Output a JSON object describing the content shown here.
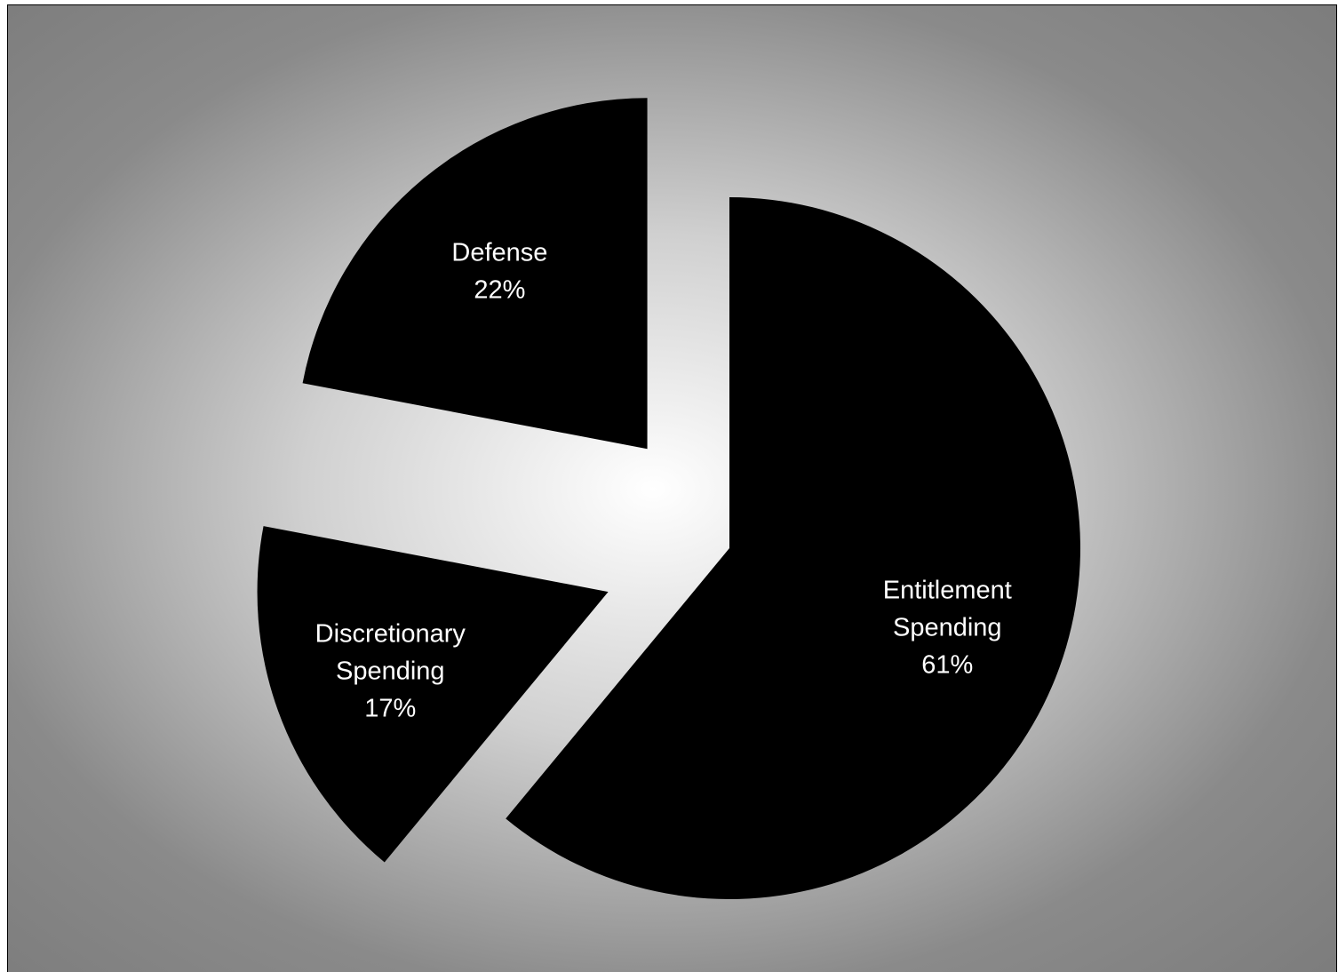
{
  "chart_data": {
    "type": "pie",
    "title": "",
    "slices": [
      {
        "label_lines": [
          "Entitlement",
          "Spending"
        ],
        "percent_label": "61%",
        "value": 61
      },
      {
        "label_lines": [
          "Discretionary",
          "Spending"
        ],
        "percent_label": "17%",
        "value": 17
      },
      {
        "label_lines": [
          "Defense"
        ],
        "percent_label": "22%",
        "value": 22
      }
    ],
    "exploded": true,
    "legend": "none",
    "colors": {
      "slice_fill": "#000000",
      "label_text": "#ffffff",
      "background_center": "#ffffff",
      "background_edge": "#7a7a7a"
    }
  }
}
